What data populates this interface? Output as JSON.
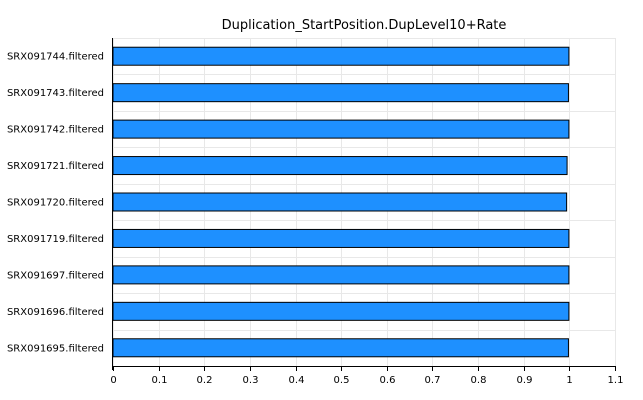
{
  "chart_data": {
    "type": "bar",
    "orientation": "horizontal",
    "title": "Duplication_StartPosition.DupLevel10+Rate",
    "xlabel": "",
    "ylabel": "",
    "categories": [
      "SRX091744.filtered",
      "SRX091743.filtered",
      "SRX091742.filtered",
      "SRX091721.filtered",
      "SRX091720.filtered",
      "SRX091719.filtered",
      "SRX091697.filtered",
      "SRX091696.filtered",
      "SRX091695.filtered"
    ],
    "values": [
      0.999,
      0.998,
      0.999,
      0.995,
      0.994,
      0.999,
      0.999,
      0.999,
      0.998
    ],
    "xlim": [
      0,
      1.1
    ],
    "xticks": [
      "0",
      "0.1",
      "0.2",
      "0.3",
      "0.4",
      "0.5",
      "0.6",
      "0.7",
      "0.8",
      "0.9",
      "1",
      "1.1"
    ],
    "grid": true,
    "legend": "none",
    "bar_color": "#1e90ff"
  }
}
